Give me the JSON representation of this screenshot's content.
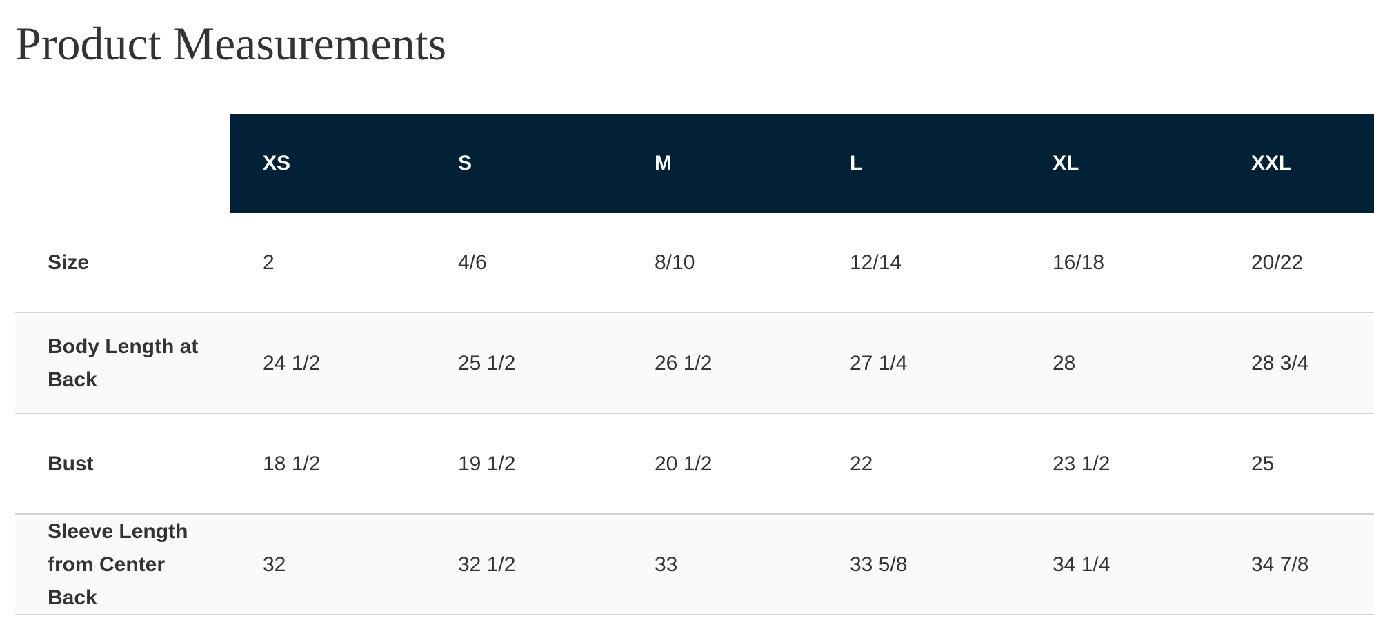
{
  "title": "Product Measurements",
  "table": {
    "columns": [
      "XS",
      "S",
      "M",
      "L",
      "XL",
      "XXL"
    ],
    "rows": [
      {
        "label": "Size",
        "cells": [
          "2",
          "4/6",
          "8/10",
          "12/14",
          "16/18",
          "20/22"
        ]
      },
      {
        "label": "Body Length at Back",
        "cells": [
          "24 1/2",
          "25 1/2",
          "26 1/2",
          "27 1/4",
          "28",
          "28 3/4"
        ]
      },
      {
        "label": "Bust",
        "cells": [
          "18 1/2",
          "19 1/2",
          "20 1/2",
          "22",
          "23 1/2",
          "25"
        ]
      },
      {
        "label": "Sleeve Length from Center Back",
        "cells": [
          "32",
          "32 1/2",
          "33",
          "33 5/8",
          "34 1/4",
          "34 7/8"
        ]
      }
    ]
  }
}
